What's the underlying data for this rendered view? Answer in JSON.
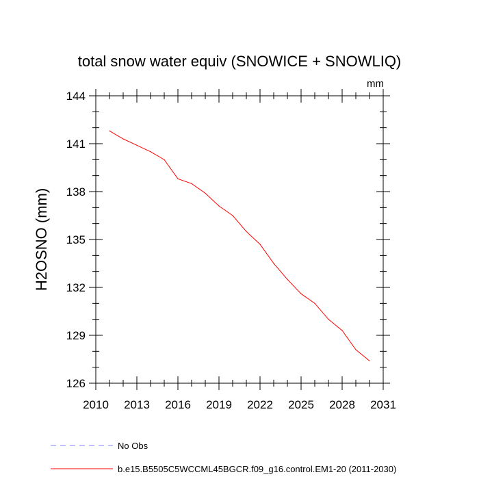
{
  "chart_data": {
    "type": "line",
    "title": "total snow water equiv (SNOWICE + SNOWLIQ)",
    "units": "mm",
    "xlabel": "",
    "ylabel": "H2OSNO  (mm)",
    "xlim": [
      2010,
      2031
    ],
    "ylim": [
      126,
      144
    ],
    "xticks": [
      2010,
      2013,
      2016,
      2019,
      2022,
      2025,
      2028,
      2031
    ],
    "yticks": [
      126,
      129,
      132,
      135,
      138,
      141,
      144
    ],
    "series": [
      {
        "name": "b.e15.B5505C5WCCML45BGCR.f09_g16.control.EM1-20 (2011-2030)",
        "color": "#ff0000",
        "x": [
          2011,
          2012,
          2013,
          2014,
          2015,
          2016,
          2017,
          2018,
          2019,
          2020,
          2021,
          2022,
          2023,
          2024,
          2025,
          2026,
          2027,
          2028,
          2029,
          2030
        ],
        "y": [
          141.8,
          141.3,
          140.9,
          140.5,
          140.0,
          138.8,
          138.5,
          137.9,
          137.1,
          136.5,
          135.5,
          134.7,
          133.5,
          132.5,
          131.6,
          131.0,
          130.0,
          129.3,
          128.1,
          127.4
        ]
      }
    ],
    "legend": [
      {
        "label": "No Obs",
        "color": "#8080ff",
        "style": "dashed"
      },
      {
        "label": "b.e15.B5505C5WCCML45BGCR.f09_g16.control.EM1-20 (2011-2030)",
        "color": "#ff0000",
        "style": "solid"
      }
    ],
    "legend_position": "bottom-left",
    "grid": false
  }
}
